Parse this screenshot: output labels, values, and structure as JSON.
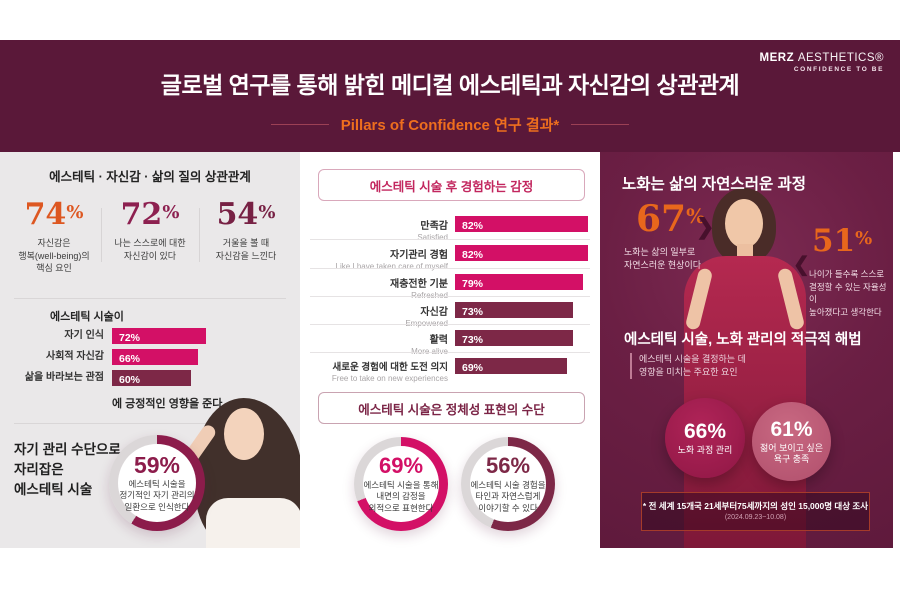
{
  "header": {
    "title": "글로벌 연구를 통해 밝힌 메디컬 에스테틱과 자신감의 상관관계",
    "subtitle": "Pillars of Confidence 연구 결과*",
    "logo": {
      "brand_bold": "MERZ",
      "brand_light": "AESTHETICS®",
      "tagline": "CONFIDENCE TO BE"
    }
  },
  "colors": {
    "header_bg": "#5a1839",
    "right_panel_bg": "#6b1f44",
    "left_panel_bg": "#eae8e9",
    "accent_orange": "#e8671c",
    "magenta": "#d31066",
    "maroon": "#7d2847",
    "donut_maroon": "#8c1c4b",
    "circle_dark": "#a21a50",
    "circle_light": "#c4627f",
    "track": "#dbd7d8"
  },
  "icons": {
    "chevron_right": "❯",
    "chevron_left": "❮"
  },
  "left_panel": {
    "title": "에스테틱 · 자신감 · 삶의 질의 상관관계",
    "stats": [
      {
        "num": "74",
        "sign": "%",
        "desc": "자신감은\n행복(well-being)의\n핵심 요인"
      },
      {
        "num": "72",
        "sign": "%",
        "desc": "나는 스스로에 대한\n자신감이 있다"
      },
      {
        "num": "54",
        "sign": "%",
        "desc": "거울을 볼 때\n자신감을 느낀다"
      }
    ],
    "impact_lead": "에스테틱 시술이",
    "impact_tail": "에 긍정적인 영향을 준다.",
    "selfcare_title": "자기 관리 수단으로\n자리잡은\n에스테틱 시술"
  },
  "middle_panel": {
    "emotions_title": "에스테틱 시술 후 경험하는 감정",
    "identity_title": "에스테틱 시술은 정체성 표현의 수단"
  },
  "right_panel": {
    "aging_title": "노화는 삶의 자연스러운 과정",
    "stats": [
      {
        "num": "67",
        "sign": "%",
        "desc": "노화는 삶의 일부로\n자연스러운 현상이다"
      },
      {
        "num": "51",
        "sign": "%",
        "desc": "나이가 들수록 스스로\n결정할 수 있는 자율성이\n높아졌다고 생각한다"
      }
    ],
    "solution_title": "에스테틱 시술, 노화 관리의 적극적 해법",
    "solution_sub": "에스테틱 시술을 결정하는 데\n영향을 미치는 주요한 요인",
    "circles": [
      {
        "value": "66%",
        "label": "노화 과정 관리"
      },
      {
        "value": "61%",
        "label": "젊어 보이고 싶은\n욕구 충족"
      }
    ],
    "footnote": "* 전 세계 15개국 21세부터75세까지의 성인 15,000명 대상 조사",
    "footnote_date": "(2024.09.23~10.08)"
  },
  "chart_data": [
    {
      "id": "impact_bars",
      "type": "bar",
      "title": "에스테틱 시술이 …에 긍정적인 영향을 준다",
      "categories": [
        "자기 인식",
        "사회적 자신감",
        "삶을 바라보는 관점"
      ],
      "values": [
        72,
        66,
        60
      ],
      "value_labels": [
        "72%",
        "66%",
        "60%"
      ],
      "colors": [
        "#d31066",
        "#d31066",
        "#7d2847"
      ],
      "xlim": [
        0,
        100
      ],
      "grid": false,
      "legend": "none"
    },
    {
      "id": "emotions_bars",
      "type": "bar",
      "title": "에스테틱 시술 후 경험하는 감정",
      "categories": [
        "만족감",
        "자기관리 경험",
        "재충전한 기분",
        "자신감",
        "활력",
        "새로운 경험에 대한 도전 의지"
      ],
      "categories_en": [
        "Satisfied",
        "Like I have taken care of myself",
        "Refreshed",
        "Empowered",
        "More alive",
        "Free to take on new experiences"
      ],
      "values": [
        82,
        82,
        79,
        73,
        73,
        69
      ],
      "value_labels": [
        "82%",
        "82%",
        "79%",
        "73%",
        "73%",
        "69%"
      ],
      "colors": [
        "#d31066",
        "#d31066",
        "#d31066",
        "#7d2847",
        "#7d2847",
        "#7d2847"
      ],
      "xlim": [
        0,
        100
      ],
      "grid": false,
      "legend": "none"
    },
    {
      "id": "selfcare_donut",
      "type": "pie",
      "value": 59,
      "value_label": "59%",
      "desc": "에스테틱 시술을\n정기적인 자기 관리의\n일환으로 인식한다",
      "color": "#8c1c4b"
    },
    {
      "id": "expression_donut",
      "type": "pie",
      "value": 69,
      "value_label": "69%",
      "desc": "에스테틱 시술을 통해\n내면의 감정을\n외적으로 표현한다",
      "color": "#d31066"
    },
    {
      "id": "share_donut",
      "type": "pie",
      "value": 56,
      "value_label": "56%",
      "desc": "에스테틱 시술 경험을\n타인과 자연스럽게\n이야기할 수 있다",
      "color": "#7d2847"
    }
  ]
}
